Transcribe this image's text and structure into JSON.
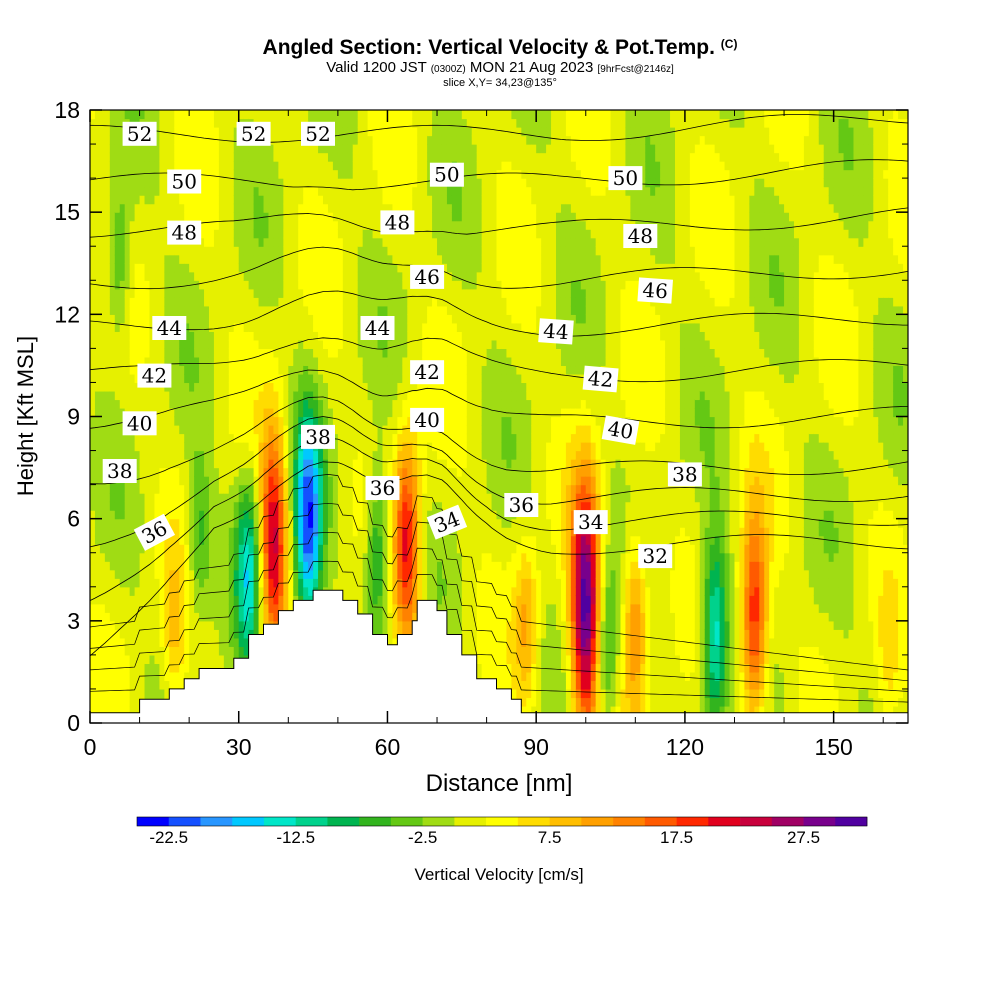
{
  "header": {
    "title": "Angled Section: Vertical Velocity & Pot.Temp.",
    "title_mark": "(C)",
    "line2_a": "Valid 1200 JST",
    "line2_b": "(0300Z)",
    "line2_c": "MON 21 Aug 2023",
    "line2_d": "[9hrFcst@2146z]",
    "line3": "slice X,Y= 34,23@135°"
  },
  "colorbar": {
    "colors": [
      "#0000ff",
      "#1450ff",
      "#2896ff",
      "#00c8ff",
      "#00e6c8",
      "#00d28c",
      "#00b450",
      "#32b41e",
      "#64c814",
      "#a0dc14",
      "#e6f000",
      "#ffff00",
      "#ffdc00",
      "#ffbe00",
      "#ffa000",
      "#ff8200",
      "#ff5a00",
      "#ff2800",
      "#e1001e",
      "#c8003c",
      "#a00064",
      "#78008c",
      "#5000a0"
    ],
    "labels": [
      "-22.5",
      "-12.5",
      "-2.5",
      "7.5",
      "17.5",
      "27.5"
    ],
    "label_index": [
      1,
      5,
      9,
      13,
      17,
      21
    ],
    "title": "Vertical Velocity [cm/s]"
  },
  "chart_data": {
    "type": "heatmap",
    "xlabel": "Distance [nm]",
    "ylabel": "Height [Kft MSL]",
    "xlim": [
      0,
      165
    ],
    "ylim": [
      0,
      18
    ],
    "xticks": [
      0,
      30,
      60,
      90,
      120,
      150
    ],
    "yticks": [
      0,
      3,
      6,
      9,
      12,
      15,
      18
    ],
    "field": "Vertical Velocity [cm/s]",
    "contour_field": "Potential Temperature [C]",
    "terrain": [
      [
        0,
        0.3
      ],
      [
        10,
        0.3
      ],
      [
        10,
        0.7
      ],
      [
        16,
        0.7
      ],
      [
        16,
        1.0
      ],
      [
        19,
        1.0
      ],
      [
        19,
        1.3
      ],
      [
        22,
        1.3
      ],
      [
        22,
        1.6
      ],
      [
        29,
        1.6
      ],
      [
        29,
        1.9
      ],
      [
        32,
        1.9
      ],
      [
        32,
        2.6
      ],
      [
        35,
        2.6
      ],
      [
        35,
        2.9
      ],
      [
        38,
        2.9
      ],
      [
        38,
        3.3
      ],
      [
        41,
        3.3
      ],
      [
        41,
        3.6
      ],
      [
        45,
        3.6
      ],
      [
        45,
        3.9
      ],
      [
        51,
        3.9
      ],
      [
        51,
        3.6
      ],
      [
        54,
        3.6
      ],
      [
        54,
        3.2
      ],
      [
        57,
        3.2
      ],
      [
        57,
        2.6
      ],
      [
        60,
        2.6
      ],
      [
        60,
        2.3
      ],
      [
        62,
        2.3
      ],
      [
        62,
        2.6
      ],
      [
        65,
        2.6
      ],
      [
        65,
        3.0
      ],
      [
        66,
        3.0
      ],
      [
        66,
        3.6
      ],
      [
        70,
        3.6
      ],
      [
        70,
        3.3
      ],
      [
        72,
        3.3
      ],
      [
        72,
        2.6
      ],
      [
        75,
        2.6
      ],
      [
        75,
        2.0
      ],
      [
        78,
        2.0
      ],
      [
        78,
        1.3
      ],
      [
        82,
        1.3
      ],
      [
        82,
        1.0
      ],
      [
        85,
        1.0
      ],
      [
        85,
        0.7
      ],
      [
        87,
        0.7
      ],
      [
        87,
        0.3
      ],
      [
        165,
        0.3
      ]
    ],
    "updrafts": [
      {
        "x": 37,
        "y": 5.3,
        "value": 22
      },
      {
        "x": 64,
        "y": 5.2,
        "value": 20
      },
      {
        "x": 100,
        "y": 3.3,
        "value": 30
      },
      {
        "x": 134,
        "y": 3.0,
        "value": 20
      },
      {
        "x": 110,
        "y": 3.0,
        "value": 13
      },
      {
        "x": 88,
        "y": 3.0,
        "value": 9
      },
      {
        "x": 17,
        "y": 2.5,
        "value": 7
      },
      {
        "x": 161,
        "y": 1.5,
        "value": 4
      }
    ],
    "downdrafts": [
      {
        "x": 44,
        "y": 5.8,
        "value": -22
      },
      {
        "x": 32,
        "y": 4.5,
        "value": -14
      },
      {
        "x": 58,
        "y": 5.0,
        "value": -11
      },
      {
        "x": 126,
        "y": 2.6,
        "value": -16
      },
      {
        "x": 104,
        "y": 2.2,
        "value": -10
      },
      {
        "x": 22,
        "y": 5.5,
        "value": -8
      },
      {
        "x": 6,
        "y": 13.5,
        "value": -8
      }
    ],
    "isentropes": [
      {
        "value": 32,
        "base": 5.2
      },
      {
        "value": 34,
        "base": 5.9
      },
      {
        "value": 36,
        "base": 6.6
      },
      {
        "value": 38,
        "base": 7.4
      },
      {
        "value": 40,
        "base": 8.8
      },
      {
        "value": 42,
        "base": 10.2
      },
      {
        "value": 44,
        "base": 11.6
      },
      {
        "value": 46,
        "base": 13.0
      },
      {
        "value": 48,
        "base": 14.5
      },
      {
        "value": 50,
        "base": 15.9
      },
      {
        "value": 52,
        "base": 17.3
      }
    ],
    "contour_labels": [
      {
        "text": "52",
        "x": 10,
        "y": 17.3,
        "rot": 0
      },
      {
        "text": "52",
        "x": 33,
        "y": 17.3,
        "rot": 0
      },
      {
        "text": "52",
        "x": 46,
        "y": 17.3,
        "rot": 0
      },
      {
        "text": "50",
        "x": 19,
        "y": 15.9,
        "rot": 0
      },
      {
        "text": "50",
        "x": 72,
        "y": 16.1,
        "rot": 0
      },
      {
        "text": "50",
        "x": 108,
        "y": 16.0,
        "rot": 0
      },
      {
        "text": "48",
        "x": 19,
        "y": 14.4,
        "rot": 0
      },
      {
        "text": "48",
        "x": 62,
        "y": 14.7,
        "rot": 0
      },
      {
        "text": "48",
        "x": 111,
        "y": 14.3,
        "rot": 0
      },
      {
        "text": "46",
        "x": 68,
        "y": 13.1,
        "rot": 0
      },
      {
        "text": "46",
        "x": 114,
        "y": 12.7,
        "rot": 4
      },
      {
        "text": "44",
        "x": 16,
        "y": 11.6,
        "rot": 0
      },
      {
        "text": "44",
        "x": 58,
        "y": 11.6,
        "rot": 0
      },
      {
        "text": "44",
        "x": 94,
        "y": 11.5,
        "rot": 4
      },
      {
        "text": "42",
        "x": 13,
        "y": 10.2,
        "rot": 0
      },
      {
        "text": "42",
        "x": 68,
        "y": 10.3,
        "rot": 0
      },
      {
        "text": "42",
        "x": 103,
        "y": 10.1,
        "rot": 5
      },
      {
        "text": "40",
        "x": 10,
        "y": 8.8,
        "rot": 0
      },
      {
        "text": "40",
        "x": 68,
        "y": 8.9,
        "rot": 0
      },
      {
        "text": "40",
        "x": 107,
        "y": 8.6,
        "rot": 10
      },
      {
        "text": "38",
        "x": 6,
        "y": 7.4,
        "rot": 0
      },
      {
        "text": "38",
        "x": 46,
        "y": 8.4,
        "rot": 0
      },
      {
        "text": "38",
        "x": 120,
        "y": 7.3,
        "rot": 0
      },
      {
        "text": "36",
        "x": 13,
        "y": 5.6,
        "rot": -28
      },
      {
        "text": "36",
        "x": 59,
        "y": 6.9,
        "rot": 0
      },
      {
        "text": "36",
        "x": 87,
        "y": 6.4,
        "rot": 0
      },
      {
        "text": "34",
        "x": 72,
        "y": 5.9,
        "rot": -22
      },
      {
        "text": "34",
        "x": 101,
        "y": 5.9,
        "rot": 0
      },
      {
        "text": "32",
        "x": 114,
        "y": 4.9,
        "rot": 0
      }
    ]
  }
}
